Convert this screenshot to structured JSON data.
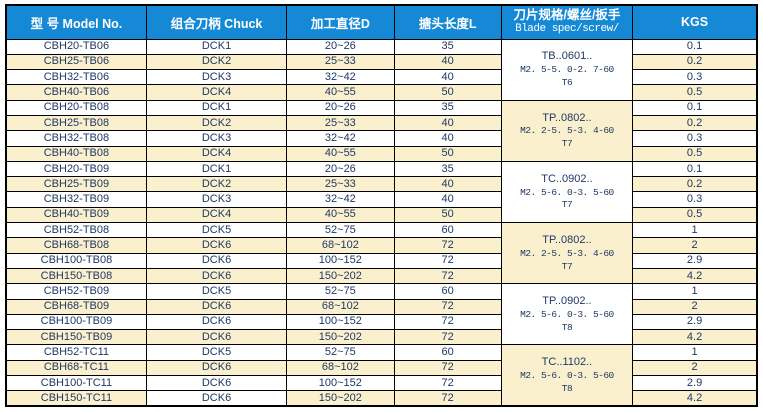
{
  "table": {
    "header": {
      "model": "型 号 Model No.",
      "chuck": "组合刀柄 Chuck",
      "diameter": "加工直径D",
      "length": "搪头长度L",
      "blade_cn": "刀片规格/螺丝/扳手",
      "blade_en": "Blade spec/screw/",
      "kgs": "KGS"
    },
    "colors": {
      "header_bg": "#1689D6",
      "header_text": "#FFFFFF",
      "stripe_cream": "#FBF0CE",
      "cell_text": "#1F3864",
      "border": "#000000"
    },
    "groups": [
      {
        "blade": {
          "series": "TB..0601..",
          "screw": "M2. 5-5. 0-2. 7-60",
          "wrench": "T6"
        },
        "blade_bg": "white",
        "rows": [
          {
            "model": "CBH20-TB06",
            "chuck": "DCK1",
            "diameter": "20~26",
            "length": "35",
            "kgs": "0.1"
          },
          {
            "model": "CBH25-TB06",
            "chuck": "DCK2",
            "diameter": "25~33",
            "length": "40",
            "kgs": "0.2"
          },
          {
            "model": "CBH32-TB06",
            "chuck": "DCK3",
            "diameter": "32~42",
            "length": "40",
            "kgs": "0.3"
          },
          {
            "model": "CBH40-TB06",
            "chuck": "DCK4",
            "diameter": "40~55",
            "length": "50",
            "kgs": "0.5"
          }
        ]
      },
      {
        "blade": {
          "series": "TP..0802..",
          "screw": "M2. 2-5. 5-3. 4-60",
          "wrench": "T7"
        },
        "blade_bg": "cream",
        "rows": [
          {
            "model": "CBH20-TB08",
            "chuck": "DCK1",
            "diameter": "20~26",
            "length": "35",
            "kgs": "0.1"
          },
          {
            "model": "CBH25-TB08",
            "chuck": "DCK2",
            "diameter": "25~33",
            "length": "40",
            "kgs": "0.2"
          },
          {
            "model": "CBH32-TB08",
            "chuck": "DCK3",
            "diameter": "32~42",
            "length": "40",
            "kgs": "0.3"
          },
          {
            "model": "CBH40-TB08",
            "chuck": "DCK4",
            "diameter": "40~55",
            "length": "50",
            "kgs": "0.5"
          }
        ]
      },
      {
        "blade": {
          "series": "TC..0902..",
          "screw": "M2. 5-6. 0-3. 5-60",
          "wrench": "T7"
        },
        "blade_bg": "white",
        "rows": [
          {
            "model": "CBH20-TB09",
            "chuck": "DCK1",
            "diameter": "20~26",
            "length": "35",
            "kgs": "0.1"
          },
          {
            "model": "CBH25-TB09",
            "chuck": "DCK2",
            "diameter": "25~33",
            "length": "40",
            "kgs": "0.2"
          },
          {
            "model": "CBH32-TB09",
            "chuck": "DCK3",
            "diameter": "32~42",
            "length": "40",
            "kgs": "0.3"
          },
          {
            "model": "CBH40-TB09",
            "chuck": "DCK4",
            "diameter": "40~55",
            "length": "50",
            "kgs": "0.5"
          }
        ]
      },
      {
        "blade": {
          "series": "TP..0802..",
          "screw": "M2. 2-5. 5-3. 4-60",
          "wrench": "T7"
        },
        "blade_bg": "cream",
        "rows": [
          {
            "model": "CBH52-TB08",
            "chuck": "DCK5",
            "diameter": "52~75",
            "length": "60",
            "kgs": "1"
          },
          {
            "model": "CBH68-TB08",
            "chuck": "DCK6",
            "diameter": "68~102",
            "length": "72",
            "kgs": "2"
          },
          {
            "model": "CBH100-TB08",
            "chuck": "DCK6",
            "diameter": "100~152",
            "length": "72",
            "kgs": "2.9"
          },
          {
            "model": "CBH150-TB08",
            "chuck": "DCK6",
            "diameter": "150~202",
            "length": "72",
            "kgs": "4.2"
          }
        ]
      },
      {
        "blade": {
          "series": "TP..0902..",
          "screw": "M2. 5-6. 0-3. 5-60",
          "wrench": "T8"
        },
        "blade_bg": "white",
        "rows": [
          {
            "model": "CBH52-TB09",
            "chuck": "DCK5",
            "diameter": "52~75",
            "length": "60",
            "kgs": "1"
          },
          {
            "model": "CBH68-TB09",
            "chuck": "DCK6",
            "diameter": "68~102",
            "length": "72",
            "kgs": "2"
          },
          {
            "model": "CBH100-TB09",
            "chuck": "DCK6",
            "diameter": "100~152",
            "length": "72",
            "kgs": "2.9"
          },
          {
            "model": "CBH150-TB09",
            "chuck": "DCK6",
            "diameter": "150~202",
            "length": "72",
            "kgs": "4.2"
          }
        ]
      },
      {
        "blade": {
          "series": "TC..1102..",
          "screw": "M2. 5-6. 0-3. 5-60",
          "wrench": "T8"
        },
        "blade_bg": "cream",
        "rows": [
          {
            "model": "CBH52-TC11",
            "chuck": "DCK5",
            "diameter": "52~75",
            "length": "60",
            "kgs": "1"
          },
          {
            "model": "CBH68-TC11",
            "chuck": "DCK6",
            "diameter": "68~102",
            "length": "72",
            "kgs": "2"
          },
          {
            "model": "CBH100-TC11",
            "chuck": "DCK6",
            "diameter": "100~152",
            "length": "72",
            "kgs": "2.9"
          },
          {
            "model": "CBH150-TC11",
            "chuck": "DCK6",
            "diameter": "150~202",
            "length": "72",
            "kgs": "4.2",
            "chuck_bg": "white"
          }
        ]
      }
    ]
  }
}
